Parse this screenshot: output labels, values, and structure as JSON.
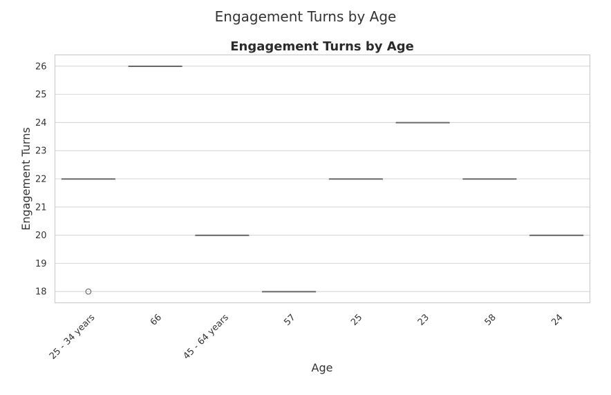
{
  "figure": {
    "suptitle": "Engagement Turns by Age"
  },
  "chart_data": {
    "type": "box",
    "title": "Engagement Turns by Age",
    "xlabel": "Age",
    "ylabel": "Engagement Turns",
    "categories": [
      "25 - 34 years",
      "66",
      "45 - 64 years",
      "57",
      "25",
      "23",
      "58",
      "24"
    ],
    "boxes": [
      {
        "category": "25 - 34 years",
        "q1": 22,
        "median": 22,
        "q3": 22,
        "whisker_low": 22,
        "whisker_high": 22,
        "outliers": [
          18
        ]
      },
      {
        "category": "66",
        "q1": 26,
        "median": 26,
        "q3": 26,
        "whisker_low": 26,
        "whisker_high": 26,
        "outliers": []
      },
      {
        "category": "45 - 64 years",
        "q1": 20,
        "median": 20,
        "q3": 20,
        "whisker_low": 20,
        "whisker_high": 20,
        "outliers": []
      },
      {
        "category": "57",
        "q1": 18,
        "median": 18,
        "q3": 18,
        "whisker_low": 18,
        "whisker_high": 18,
        "outliers": []
      },
      {
        "category": "25",
        "q1": 22,
        "median": 22,
        "q3": 22,
        "whisker_low": 22,
        "whisker_high": 22,
        "outliers": []
      },
      {
        "category": "23",
        "q1": 24,
        "median": 24,
        "q3": 24,
        "whisker_low": 24,
        "whisker_high": 24,
        "outliers": []
      },
      {
        "category": "58",
        "q1": 22,
        "median": 22,
        "q3": 22,
        "whisker_low": 22,
        "whisker_high": 22,
        "outliers": []
      },
      {
        "category": "24",
        "q1": 20,
        "median": 20,
        "q3": 20,
        "whisker_low": 20,
        "whisker_high": 20,
        "outliers": []
      }
    ],
    "yticks": [
      18,
      19,
      20,
      21,
      22,
      23,
      24,
      25,
      26
    ],
    "ylim": [
      17.6,
      26.4
    ],
    "grid": true,
    "legend": "none",
    "colors": {
      "grid": "#d6d6d6",
      "frame": "#cccccc",
      "median": "#666666",
      "flier": "#555555"
    }
  }
}
